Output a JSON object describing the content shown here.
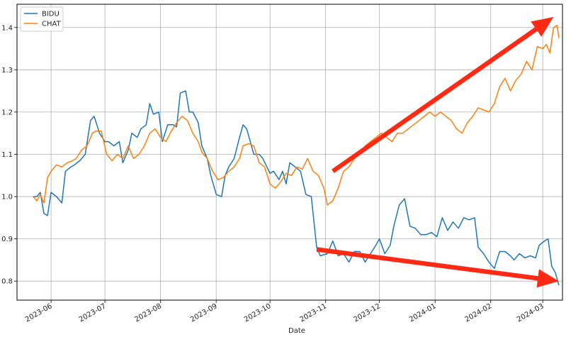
{
  "chart_data": {
    "type": "line",
    "xlabel": "Date",
    "ylabel": "",
    "title": "",
    "xlim": [
      "2023-05-13",
      "2024-03-12"
    ],
    "ylim": [
      0.755,
      1.455
    ],
    "grid": true,
    "legend": "top-left",
    "y_ticks": [
      0.8,
      0.9,
      1.0,
      1.1,
      1.2,
      1.3,
      1.4
    ],
    "y_tick_labels": [
      "0.8",
      "0.9",
      "1.0",
      "1.1",
      "1.2",
      "1.3",
      "1.4"
    ],
    "x_ticks": [
      "2023-06-01",
      "2023-07-01",
      "2023-08-01",
      "2023-09-01",
      "2023-10-01",
      "2023-11-01",
      "2023-12-01",
      "2024-01-01",
      "2024-02-01",
      "2024-03-01"
    ],
    "x_tick_labels": [
      "2023-06",
      "2023-07",
      "2023-08",
      "2023-09",
      "2023-10",
      "2023-11",
      "2023-12",
      "2024-01",
      "2024-02",
      "2024-03"
    ],
    "series": [
      {
        "name": "BIDU",
        "color": "#1f77b4",
        "points": [
          [
            "2023-05-22",
            1.0
          ],
          [
            "2023-05-24",
            1.0
          ],
          [
            "2023-05-26",
            1.01
          ],
          [
            "2023-05-28",
            0.96
          ],
          [
            "2023-05-30",
            0.955
          ],
          [
            "2023-06-01",
            1.01
          ],
          [
            "2023-06-04",
            1.0
          ],
          [
            "2023-06-07",
            0.985
          ],
          [
            "2023-06-09",
            1.06
          ],
          [
            "2023-06-12",
            1.07
          ],
          [
            "2023-06-14",
            1.075
          ],
          [
            "2023-06-17",
            1.085
          ],
          [
            "2023-06-20",
            1.1
          ],
          [
            "2023-06-23",
            1.18
          ],
          [
            "2023-06-25",
            1.19
          ],
          [
            "2023-06-28",
            1.15
          ],
          [
            "2023-07-01",
            1.13
          ],
          [
            "2023-07-03",
            1.13
          ],
          [
            "2023-07-06",
            1.12
          ],
          [
            "2023-07-09",
            1.13
          ],
          [
            "2023-07-11",
            1.08
          ],
          [
            "2023-07-14",
            1.11
          ],
          [
            "2023-07-16",
            1.15
          ],
          [
            "2023-07-19",
            1.14
          ],
          [
            "2023-07-21",
            1.16
          ],
          [
            "2023-07-24",
            1.17
          ],
          [
            "2023-07-26",
            1.22
          ],
          [
            "2023-07-28",
            1.195
          ],
          [
            "2023-07-31",
            1.2
          ],
          [
            "2023-08-02",
            1.13
          ],
          [
            "2023-08-05",
            1.17
          ],
          [
            "2023-08-08",
            1.17
          ],
          [
            "2023-08-10",
            1.165
          ],
          [
            "2023-08-12",
            1.245
          ],
          [
            "2023-08-15",
            1.25
          ],
          [
            "2023-08-17",
            1.2
          ],
          [
            "2023-08-19",
            1.2
          ],
          [
            "2023-08-22",
            1.175
          ],
          [
            "2023-08-24",
            1.12
          ],
          [
            "2023-08-27",
            1.09
          ],
          [
            "2023-08-29",
            1.05
          ],
          [
            "2023-09-01",
            1.005
          ],
          [
            "2023-09-04",
            1.0
          ],
          [
            "2023-09-06",
            1.05
          ],
          [
            "2023-09-08",
            1.07
          ],
          [
            "2023-09-11",
            1.09
          ],
          [
            "2023-09-14",
            1.14
          ],
          [
            "2023-09-16",
            1.17
          ],
          [
            "2023-09-18",
            1.16
          ],
          [
            "2023-09-20",
            1.13
          ],
          [
            "2023-09-22",
            1.1
          ],
          [
            "2023-09-25",
            1.1
          ],
          [
            "2023-09-27",
            1.09
          ],
          [
            "2023-10-01",
            1.055
          ],
          [
            "2023-10-03",
            1.06
          ],
          [
            "2023-10-06",
            1.04
          ],
          [
            "2023-10-08",
            1.06
          ],
          [
            "2023-10-10",
            1.03
          ],
          [
            "2023-10-12",
            1.08
          ],
          [
            "2023-10-15",
            1.07
          ],
          [
            "2023-10-18",
            1.06
          ],
          [
            "2023-10-21",
            1.005
          ],
          [
            "2023-10-24",
            1.0
          ],
          [
            "2023-10-27",
            0.88
          ],
          [
            "2023-10-29",
            0.86
          ],
          [
            "2023-11-02",
            0.865
          ],
          [
            "2023-11-05",
            0.895
          ],
          [
            "2023-11-08",
            0.86
          ],
          [
            "2023-11-11",
            0.865
          ],
          [
            "2023-11-14",
            0.845
          ],
          [
            "2023-11-17",
            0.87
          ],
          [
            "2023-11-20",
            0.87
          ],
          [
            "2023-11-23",
            0.845
          ],
          [
            "2023-11-26",
            0.865
          ],
          [
            "2023-11-29",
            0.885
          ],
          [
            "2023-12-01",
            0.9
          ],
          [
            "2023-12-04",
            0.865
          ],
          [
            "2023-12-07",
            0.885
          ],
          [
            "2023-12-09",
            0.93
          ],
          [
            "2023-12-12",
            0.98
          ],
          [
            "2023-12-15",
            0.995
          ],
          [
            "2023-12-18",
            0.93
          ],
          [
            "2023-12-21",
            0.925
          ],
          [
            "2023-12-24",
            0.91
          ],
          [
            "2023-12-27",
            0.91
          ],
          [
            "2023-12-30",
            0.915
          ],
          [
            "2024-01-02",
            0.905
          ],
          [
            "2024-01-05",
            0.95
          ],
          [
            "2024-01-08",
            0.92
          ],
          [
            "2024-01-11",
            0.94
          ],
          [
            "2024-01-14",
            0.925
          ],
          [
            "2024-01-17",
            0.95
          ],
          [
            "2024-01-20",
            0.945
          ],
          [
            "2024-01-23",
            0.95
          ],
          [
            "2024-01-25",
            0.88
          ],
          [
            "2024-01-28",
            0.865
          ],
          [
            "2024-01-31",
            0.845
          ],
          [
            "2024-02-03",
            0.83
          ],
          [
            "2024-02-06",
            0.87
          ],
          [
            "2024-02-09",
            0.87
          ],
          [
            "2024-02-12",
            0.86
          ],
          [
            "2024-02-14",
            0.85
          ],
          [
            "2024-02-17",
            0.865
          ],
          [
            "2024-02-20",
            0.855
          ],
          [
            "2024-02-23",
            0.86
          ],
          [
            "2024-02-26",
            0.855
          ],
          [
            "2024-02-28",
            0.885
          ],
          [
            "2024-03-02",
            0.895
          ],
          [
            "2024-03-04",
            0.9
          ],
          [
            "2024-03-06",
            0.835
          ],
          [
            "2024-03-08",
            0.82
          ],
          [
            "2024-03-10",
            0.79
          ]
        ]
      },
      {
        "name": "CHAT",
        "color": "#ff7f0e",
        "points": [
          [
            "2023-05-22",
            1.0
          ],
          [
            "2023-05-24",
            0.99
          ],
          [
            "2023-05-26",
            1.005
          ],
          [
            "2023-05-28",
            0.985
          ],
          [
            "2023-05-30",
            1.045
          ],
          [
            "2023-06-01",
            1.06
          ],
          [
            "2023-06-04",
            1.075
          ],
          [
            "2023-06-07",
            1.07
          ],
          [
            "2023-06-10",
            1.08
          ],
          [
            "2023-06-13",
            1.085
          ],
          [
            "2023-06-15",
            1.09
          ],
          [
            "2023-06-18",
            1.11
          ],
          [
            "2023-06-21",
            1.12
          ],
          [
            "2023-06-24",
            1.15
          ],
          [
            "2023-06-26",
            1.155
          ],
          [
            "2023-06-29",
            1.155
          ],
          [
            "2023-07-02",
            1.1
          ],
          [
            "2023-07-05",
            1.085
          ],
          [
            "2023-07-08",
            1.1
          ],
          [
            "2023-07-11",
            1.09
          ],
          [
            "2023-07-14",
            1.12
          ],
          [
            "2023-07-17",
            1.09
          ],
          [
            "2023-07-20",
            1.1
          ],
          [
            "2023-07-23",
            1.12
          ],
          [
            "2023-07-26",
            1.15
          ],
          [
            "2023-07-29",
            1.16
          ],
          [
            "2023-08-01",
            1.14
          ],
          [
            "2023-08-04",
            1.13
          ],
          [
            "2023-08-07",
            1.155
          ],
          [
            "2023-08-10",
            1.175
          ],
          [
            "2023-08-13",
            1.19
          ],
          [
            "2023-08-16",
            1.18
          ],
          [
            "2023-08-19",
            1.15
          ],
          [
            "2023-08-22",
            1.13
          ],
          [
            "2023-08-24",
            1.105
          ],
          [
            "2023-08-27",
            1.09
          ],
          [
            "2023-08-30",
            1.06
          ],
          [
            "2023-09-02",
            1.04
          ],
          [
            "2023-09-05",
            1.045
          ],
          [
            "2023-09-08",
            1.06
          ],
          [
            "2023-09-11",
            1.07
          ],
          [
            "2023-09-14",
            1.09
          ],
          [
            "2023-09-16",
            1.12
          ],
          [
            "2023-09-19",
            1.125
          ],
          [
            "2023-09-22",
            1.12
          ],
          [
            "2023-09-25",
            1.08
          ],
          [
            "2023-09-28",
            1.07
          ],
          [
            "2023-10-01",
            1.03
          ],
          [
            "2023-10-04",
            1.02
          ],
          [
            "2023-10-07",
            1.035
          ],
          [
            "2023-10-10",
            1.055
          ],
          [
            "2023-10-13",
            1.05
          ],
          [
            "2023-10-16",
            1.07
          ],
          [
            "2023-10-19",
            1.065
          ],
          [
            "2023-10-22",
            1.09
          ],
          [
            "2023-10-25",
            1.06
          ],
          [
            "2023-10-28",
            1.05
          ],
          [
            "2023-10-31",
            1.02
          ],
          [
            "2023-11-02",
            0.98
          ],
          [
            "2023-11-05",
            0.99
          ],
          [
            "2023-11-08",
            1.02
          ],
          [
            "2023-11-11",
            1.06
          ],
          [
            "2023-11-14",
            1.07
          ],
          [
            "2023-11-17",
            1.09
          ],
          [
            "2023-11-20",
            1.1
          ],
          [
            "2023-11-23",
            1.12
          ],
          [
            "2023-11-26",
            1.13
          ],
          [
            "2023-11-29",
            1.14
          ],
          [
            "2023-12-02",
            1.15
          ],
          [
            "2023-12-05",
            1.14
          ],
          [
            "2023-12-08",
            1.13
          ],
          [
            "2023-12-11",
            1.15
          ],
          [
            "2023-12-14",
            1.15
          ],
          [
            "2023-12-17",
            1.16
          ],
          [
            "2023-12-20",
            1.17
          ],
          [
            "2023-12-23",
            1.18
          ],
          [
            "2023-12-26",
            1.19
          ],
          [
            "2023-12-29",
            1.2
          ],
          [
            "2024-01-01",
            1.19
          ],
          [
            "2024-01-04",
            1.2
          ],
          [
            "2024-01-07",
            1.19
          ],
          [
            "2024-01-10",
            1.18
          ],
          [
            "2024-01-13",
            1.16
          ],
          [
            "2024-01-16",
            1.15
          ],
          [
            "2024-01-19",
            1.175
          ],
          [
            "2024-01-22",
            1.19
          ],
          [
            "2024-01-25",
            1.21
          ],
          [
            "2024-01-28",
            1.205
          ],
          [
            "2024-01-31",
            1.2
          ],
          [
            "2024-02-03",
            1.22
          ],
          [
            "2024-02-06",
            1.26
          ],
          [
            "2024-02-09",
            1.28
          ],
          [
            "2024-02-12",
            1.25
          ],
          [
            "2024-02-15",
            1.275
          ],
          [
            "2024-02-18",
            1.29
          ],
          [
            "2024-02-21",
            1.32
          ],
          [
            "2024-02-24",
            1.3
          ],
          [
            "2024-02-27",
            1.355
          ],
          [
            "2024-03-01",
            1.35
          ],
          [
            "2024-03-03",
            1.36
          ],
          [
            "2024-03-05",
            1.34
          ],
          [
            "2024-03-07",
            1.4
          ],
          [
            "2024-03-09",
            1.405
          ],
          [
            "2024-03-10",
            1.375
          ]
        ]
      }
    ],
    "annotations": [
      {
        "type": "arrow",
        "color": "#ff2a14",
        "from": [
          "2023-11-05",
          1.06
        ],
        "to": [
          "2024-03-07",
          1.425
        ]
      },
      {
        "type": "arrow",
        "color": "#ff2a14",
        "from": [
          "2023-10-27",
          0.875
        ],
        "to": [
          "2024-03-10",
          0.8
        ]
      }
    ]
  }
}
